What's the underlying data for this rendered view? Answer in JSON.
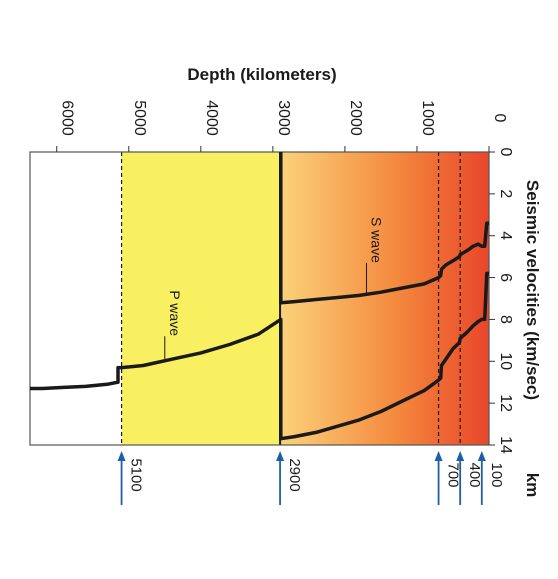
{
  "chart_data": {
    "type": "line",
    "xlabel": "Depth (kilometers)",
    "ylabel": "Seismic velocities (km/sec)",
    "xlim": [
      0,
      6371
    ],
    "ylim": [
      0,
      14
    ],
    "x_ticks": [
      0,
      1000,
      2000,
      3000,
      4000,
      5000,
      6000
    ],
    "y_ticks": [
      0,
      2,
      4,
      6,
      8,
      10,
      12,
      14
    ],
    "series": [
      {
        "name": "P wave",
        "color": "#1a1a1a",
        "x": [
          0,
          30,
          60,
          100,
          150,
          220,
          300,
          400,
          410,
          500,
          600,
          660,
          670,
          700,
          900,
          1200,
          1500,
          1800,
          2100,
          2400,
          2700,
          2890,
          2890,
          3200,
          3600,
          4000,
          4400,
          4800,
          5100,
          5150,
          5150,
          5300,
          5600,
          5900,
          6200,
          6371
        ],
        "y": [
          5.8,
          5.8,
          8.0,
          8.0,
          8.1,
          8.3,
          8.6,
          8.9,
          9.1,
          9.4,
          9.9,
          10.2,
          10.8,
          10.9,
          11.4,
          11.9,
          12.4,
          12.8,
          13.1,
          13.4,
          13.6,
          13.7,
          8.0,
          8.7,
          9.2,
          9.6,
          9.9,
          10.2,
          10.3,
          10.3,
          11.0,
          11.1,
          11.2,
          11.25,
          11.3,
          11.3
        ]
      },
      {
        "name": "S wave",
        "color": "#1a1a1a",
        "x": [
          0,
          30,
          60,
          100,
          150,
          220,
          300,
          400,
          410,
          500,
          600,
          660,
          670,
          700,
          900,
          1200,
          1500,
          1800,
          2100,
          2400,
          2700,
          2890,
          2890
        ],
        "y": [
          3.4,
          3.4,
          4.5,
          4.5,
          4.4,
          4.5,
          4.7,
          4.9,
          5.0,
          5.2,
          5.4,
          5.6,
          5.9,
          6.0,
          6.3,
          6.5,
          6.7,
          6.85,
          6.95,
          7.05,
          7.15,
          7.2,
          0
        ]
      }
    ],
    "boundaries": [
      {
        "depth": 100,
        "label": "100",
        "arrow_color": "#1f5fa6"
      },
      {
        "depth": 400,
        "label": "400",
        "arrow_color": "#1f5fa6"
      },
      {
        "depth": 700,
        "label": "700",
        "arrow_color": "#1f5fa6"
      },
      {
        "depth": 2900,
        "label": "2900",
        "arrow_color": "#1f5fa6"
      },
      {
        "depth": 5100,
        "label": "5100",
        "arrow_color": "#1f5fa6"
      }
    ],
    "boundary_unit": "km",
    "zones": [
      {
        "from": 0,
        "to": 2900,
        "color_start": "#e8462a",
        "color_end": "#fbd27a"
      },
      {
        "from": 2900,
        "to": 5100,
        "color": "#f8f060"
      },
      {
        "from": 5100,
        "to": 6371,
        "color": "#ffffff"
      }
    ],
    "rotation": "rotated 90° clockwise",
    "grid": false
  }
}
